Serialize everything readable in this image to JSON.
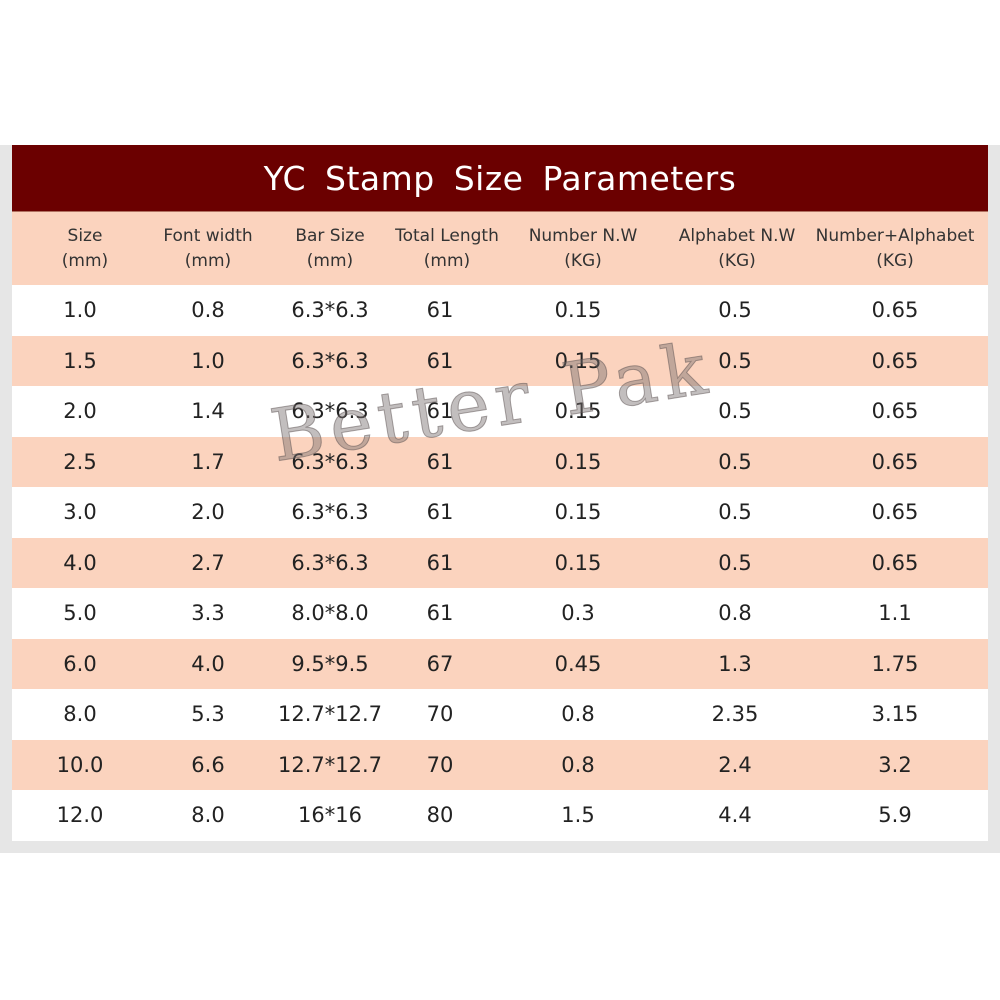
{
  "title": "YC Stamp Size Parameters",
  "colors": {
    "title_bg": "#6b0000",
    "stripe": "#fbd3be",
    "band": "#e6e6e6"
  },
  "headers": [
    {
      "l1": "Size",
      "l2": "(mm)"
    },
    {
      "l1": "Font width",
      "l2": "(mm)"
    },
    {
      "l1": "Bar Size",
      "l2": "(mm)"
    },
    {
      "l1": "Total Length",
      "l2": "(mm)"
    },
    {
      "l1": "Number N.W",
      "l2": "(KG)"
    },
    {
      "l1": "Alphabet N.W",
      "l2": "(KG)"
    },
    {
      "l1": "Number+Alphabet",
      "l2": "(KG)"
    }
  ],
  "rows": [
    [
      "1.0",
      "0.8",
      "6.3*6.3",
      "61",
      "0.15",
      "0.5",
      "0.65"
    ],
    [
      "1.5",
      "1.0",
      "6.3*6.3",
      "61",
      "0.15",
      "0.5",
      "0.65"
    ],
    [
      "2.0",
      "1.4",
      "6.3*6.3",
      "61",
      "0.15",
      "0.5",
      "0.65"
    ],
    [
      "2.5",
      "1.7",
      "6.3*6.3",
      "61",
      "0.15",
      "0.5",
      "0.65"
    ],
    [
      "3.0",
      "2.0",
      "6.3*6.3",
      "61",
      "0.15",
      "0.5",
      "0.65"
    ],
    [
      "4.0",
      "2.7",
      "6.3*6.3",
      "61",
      "0.15",
      "0.5",
      "0.65"
    ],
    [
      "5.0",
      "3.3",
      "8.0*8.0",
      "61",
      "0.3",
      "0.8",
      "1.1"
    ],
    [
      "6.0",
      "4.0",
      "9.5*9.5",
      "67",
      "0.45",
      "1.3",
      "1.75"
    ],
    [
      "8.0",
      "5.3",
      "12.7*12.7",
      "70",
      "0.8",
      "2.35",
      "3.15"
    ],
    [
      "10.0",
      "6.6",
      "12.7*12.7",
      "70",
      "0.8",
      "2.4",
      "3.2"
    ],
    [
      "12.0",
      "8.0",
      "16*16",
      "80",
      "1.5",
      "4.4",
      "5.9"
    ]
  ],
  "watermark": "Better Pak"
}
